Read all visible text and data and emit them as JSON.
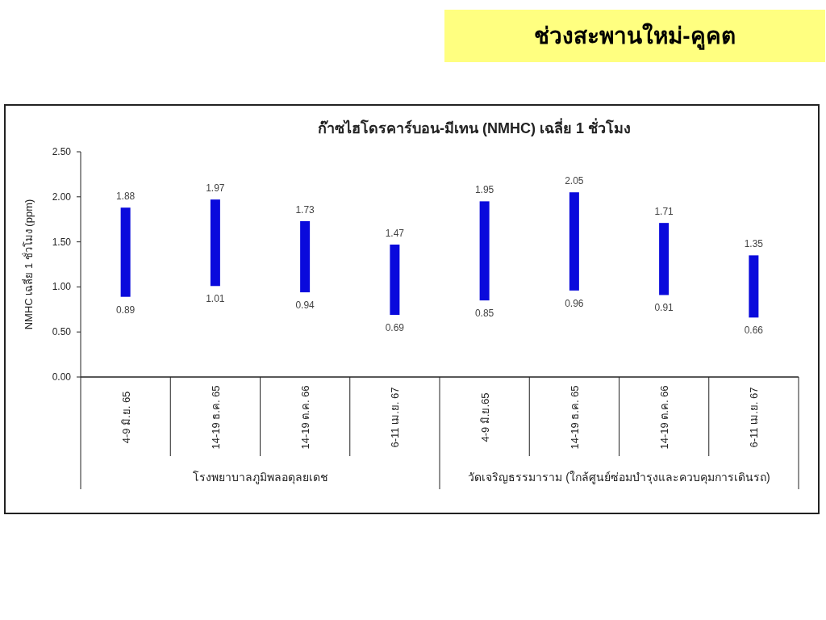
{
  "chart_data": {
    "type": "bar",
    "title": "ช่วงสะพานใหม่-คูคต",
    "subtitle": "ก๊าซไฮโดรคาร์บอน-มีเทน (NMHC) เฉลี่ย 1 ชั่วโมง",
    "ylabel": "NMHC เฉลี่ย 1 ชั่วโมง (ppm)",
    "categories": [
      "4-9 มิ.ย. 65",
      "14-19 ธ.ค. 65",
      "14-19 ต.ค. 66",
      "6-11 เม.ย. 67",
      "4-9 มิ.ย.65",
      "14-19 ธ.ค. 65",
      "14-19 ต.ค. 66",
      "6-11 เม.ย. 67"
    ],
    "base": [
      0.89,
      1.01,
      0.94,
      0.69,
      0.85,
      0.96,
      0.91,
      0.66
    ],
    "values": [
      0.99,
      0.96,
      0.79,
      0.78,
      1.1,
      1.09,
      0.8,
      0.69
    ],
    "color": "#0a0adc",
    "ylim": [
      0,
      2.5
    ],
    "yticks": [
      {
        "value": 0,
        "label": "0.00"
      },
      {
        "value": 0.5,
        "label": "0.50"
      },
      {
        "value": 1,
        "label": "1.00"
      },
      {
        "value": 1.5,
        "label": "1.50"
      },
      {
        "value": 2,
        "label": "2.00"
      },
      {
        "value": 2.5,
        "label": "2.50"
      }
    ],
    "grid": false,
    "value_labels": [
      "1.88",
      "1.97",
      "1.73",
      "1.47",
      "1.95",
      "2.05",
      "1.71",
      "1.35"
    ],
    "annotations": [
      "0.89",
      "1.01",
      "0.94",
      "0.69",
      "0.85",
      "0.96",
      "0.91",
      "0.66",
      "โรงพยาบาลภูมิพลอดุลยเดช",
      "วัดเจริญธรรมาราม (ใกล้ศูนย์ซ่อมบำรุงและควบคุมการเดินรถ)"
    ]
  }
}
